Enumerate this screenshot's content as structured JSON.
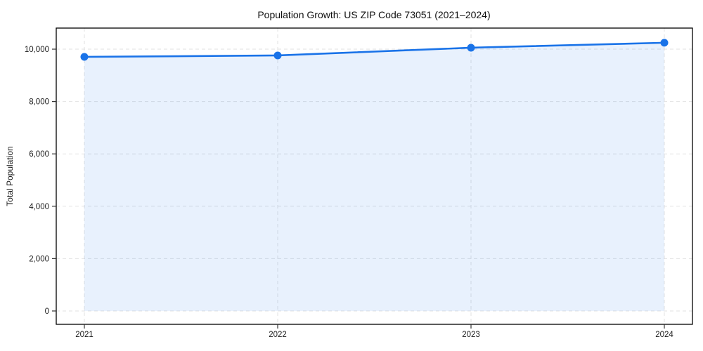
{
  "chart_data": {
    "type": "area",
    "title": "Population Growth: US ZIP Code 73051 (2021–2024)",
    "xlabel": "",
    "ylabel": "Total Population",
    "categories": [
      "2021",
      "2022",
      "2023",
      "2024"
    ],
    "series": [
      {
        "name": "Total Population",
        "values": [
          9705,
          9760,
          10055,
          10245
        ]
      }
    ],
    "yticks": [
      0,
      2000,
      4000,
      6000,
      8000,
      10000
    ],
    "ytick_labels": [
      "0",
      "2,000",
      "4,000",
      "6,000",
      "8,000",
      "10,000"
    ],
    "ylim": [
      -510,
      10805
    ],
    "grid": true,
    "grid_style": "dashed",
    "legend": false,
    "colors": {
      "line": "#1a73e8",
      "marker": "#1a73e8",
      "area_fill": "rgba(26,115,232,0.10)",
      "grid": "#e2e2e2",
      "spine": "#000000",
      "tick": "#333333",
      "text": "#1c1c1c"
    }
  }
}
